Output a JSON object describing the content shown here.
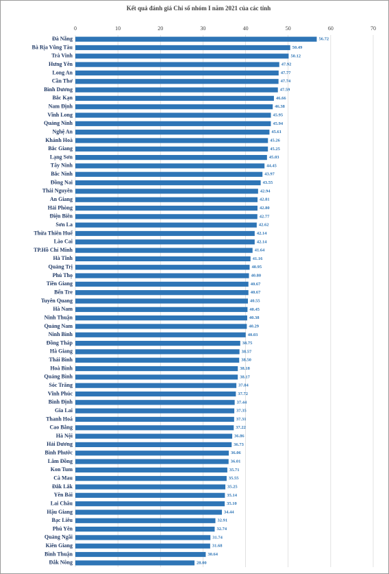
{
  "chart_data": {
    "type": "barh",
    "title": "Kết quả đánh giá Chỉ số nhóm I năm 2021 của các tỉnh",
    "categories": [
      "Đà Nẵng",
      "Bà Rịa Vũng Tàu",
      "Trà Vinh",
      "Hưng Yên",
      "Long An",
      "Cần Thơ",
      "Bình Dương",
      "Bắc Kạn",
      "Nam Định",
      "Vĩnh Long",
      "Quảng Ninh",
      "Nghệ An",
      "Khánh Hoà",
      "Bắc Giang",
      "Lạng Sơn",
      "Tây Ninh",
      "Bắc Ninh",
      "Đồng Nai",
      "Thái Nguyên",
      "An Giang",
      "Hải Phòng",
      "Điện Biên",
      "Sơn La",
      "Thừa Thiên Huế",
      "Lào Cai",
      "TP.Hồ Chí Minh",
      "Hà Tĩnh",
      "Quảng Trị",
      "Phú Thọ",
      "Tiền Giang",
      "Bến Tre",
      "Tuyên Quang",
      "Hà Nam",
      "Ninh Thuận",
      "Quảng Nam",
      "Ninh Bình",
      "Đồng Tháp",
      "Hà Giang",
      "Thái Bình",
      "Hoà Bình",
      "Quảng Bình",
      "Sóc Trăng",
      "Vĩnh Phúc",
      "Bình Định",
      "Gia Lai",
      "Thanh Hoá",
      "Cao Bằng",
      "Hà Nội",
      "Hải Dương",
      "Bình Phước",
      "Lâm Đồng",
      "Kon Tum",
      "Cà Mau",
      "Đắk Lắk",
      "Yên Bái",
      "Lai Châu",
      "Hậu Giang",
      "Bạc Liêu",
      "Phú Yên",
      "Quảng Ngãi",
      "Kiên Giang",
      "Bình Thuận",
      "Đắk Nông"
    ],
    "values": [
      56.72,
      50.49,
      50.12,
      47.92,
      47.77,
      47.74,
      47.59,
      46.66,
      46.38,
      45.95,
      45.94,
      45.61,
      45.26,
      45.25,
      45.03,
      44.45,
      43.97,
      43.55,
      42.94,
      42.81,
      42.8,
      42.77,
      42.62,
      42.14,
      42.14,
      41.64,
      41.16,
      40.95,
      40.8,
      40.67,
      40.67,
      40.55,
      40.45,
      40.38,
      40.29,
      40.03,
      38.75,
      38.57,
      38.5,
      38.18,
      38.17,
      37.84,
      37.72,
      37.44,
      37.35,
      37.31,
      37.22,
      36.86,
      36.73,
      36.06,
      36.01,
      35.71,
      35.55,
      35.25,
      35.14,
      35.1,
      34.44,
      32.91,
      32.74,
      31.74,
      31.68,
      30.64,
      28.0
    ],
    "value_labels": [
      "56.72",
      "50.49",
      "50.12",
      "47.92",
      "47.77",
      "47.74",
      "47.59",
      "46.66",
      "46.38",
      "45.95",
      "45.94",
      "45.61",
      "45.26",
      "45.25",
      "45.03",
      "44.45",
      "43.97",
      "43.55",
      "42.94",
      "42.81",
      "42.80",
      "42.77",
      "42.62",
      "42.14",
      "42.14",
      "41.64",
      "41.16",
      "40.95",
      "40.80",
      "40.67",
      "40.67",
      "40.55",
      "40.45",
      "40.38",
      "40.29",
      "40.03",
      "38.75",
      "38.57",
      "38.50",
      "38.18",
      "38.17",
      "37.84",
      "37.72",
      "37.44",
      "37.35",
      "37.31",
      "37.22",
      "36.86",
      "36.73",
      "36.06",
      "36.01",
      "35.71",
      "35.55",
      "35.25",
      "35.14",
      "35.10",
      "34.44",
      "32.91",
      "32.74",
      "31.74",
      "31.68",
      "30.64",
      "28.00"
    ],
    "color": "#2e75b6",
    "xlim": [
      0,
      70
    ],
    "xticks": [
      0,
      10,
      20,
      30,
      40,
      50,
      60,
      70
    ],
    "grid": true
  }
}
